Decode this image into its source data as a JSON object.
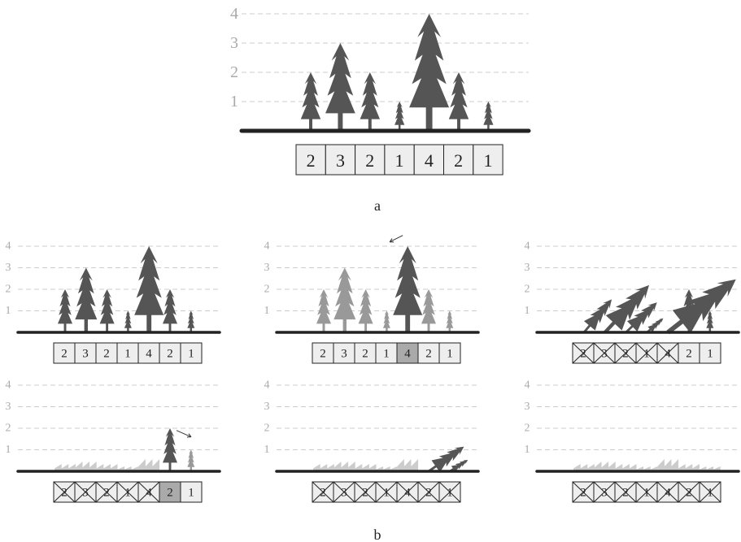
{
  "panels": [
    {
      "y_labels": [
        "1",
        "2",
        "3",
        "4"
      ],
      "cells": [
        "2",
        "3",
        "2",
        "1",
        "4",
        "2",
        "1"
      ]
    },
    {
      "y_labels": [
        "1",
        "2",
        "3",
        "4"
      ],
      "cells": [
        "2",
        "3",
        "2",
        "1",
        "4",
        "2",
        "1"
      ]
    },
    {
      "y_labels": [
        "1",
        "2",
        "3",
        "4"
      ],
      "cells": [
        "2",
        "3",
        "2",
        "1",
        "4",
        "2",
        "1"
      ]
    },
    {
      "y_labels": [
        "1",
        "2",
        "3",
        "4"
      ],
      "cells": [
        "2",
        "3",
        "2",
        "1",
        "4",
        "2",
        "1"
      ]
    },
    {
      "y_labels": [
        "1",
        "2",
        "3",
        "4"
      ],
      "cells": [
        "2",
        "3",
        "2",
        "1",
        "4",
        "2",
        "1"
      ]
    },
    {
      "y_labels": [
        "1",
        "2",
        "3",
        "4"
      ],
      "cells": [
        "2",
        "3",
        "2",
        "1",
        "4",
        "2",
        "1"
      ]
    },
    {
      "y_labels": [
        "1",
        "2",
        "3",
        "4"
      ],
      "cells": [
        "2",
        "3",
        "2",
        "1",
        "4",
        "2",
        "1"
      ]
    }
  ],
  "captions": [
    "a",
    "b"
  ]
}
